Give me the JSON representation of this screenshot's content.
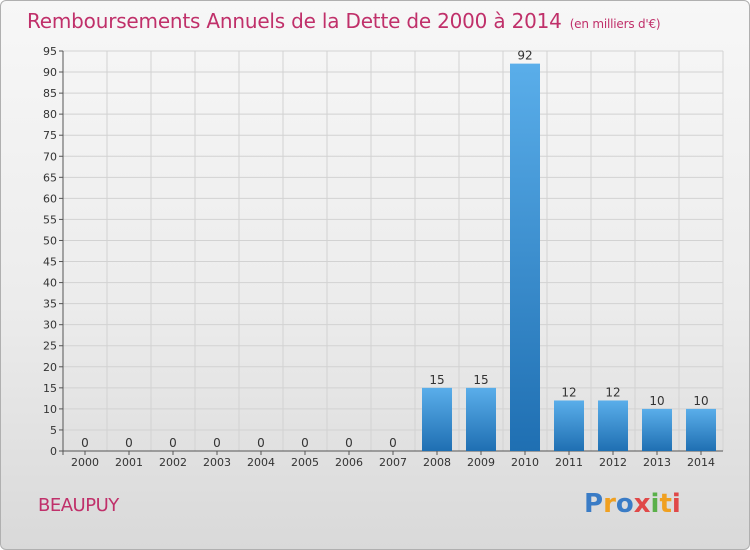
{
  "title": "Remboursements Annuels de la Dette de 2000 à 2014",
  "unit_note": "(en milliers d'€)",
  "commune": "BEAUPUY",
  "logo": {
    "text": "Proxiti",
    "letters": [
      "P",
      "r",
      "o",
      "x",
      "i",
      "t",
      "i"
    ],
    "colors": [
      "#3a7cc6",
      "#f0a020",
      "#e04848",
      "#5ab04a"
    ]
  },
  "colors": {
    "title": "#c0306a",
    "bar_light": "#5aaeea",
    "bar_dark": "#1f6fb2",
    "grid": "#d2d2d2",
    "axis_text": "#333333"
  },
  "chart_data": {
    "type": "bar",
    "title": "Remboursements Annuels de la Dette de 2000 à 2014",
    "xlabel": "",
    "ylabel": "",
    "categories": [
      "2000",
      "2001",
      "2002",
      "2003",
      "2004",
      "2005",
      "2006",
      "2007",
      "2008",
      "2009",
      "2010",
      "2011",
      "2012",
      "2013",
      "2014"
    ],
    "values": [
      0,
      0,
      0,
      0,
      0,
      0,
      0,
      0,
      15,
      15,
      92,
      12,
      12,
      10,
      10
    ],
    "data_labels": [
      "0",
      "0",
      "0",
      "0",
      "0",
      "0",
      "0",
      "0",
      "15",
      "15",
      "92",
      "12",
      "12",
      "10",
      "10"
    ],
    "ylim": [
      0,
      95
    ],
    "yticks": [
      0,
      5,
      10,
      15,
      20,
      25,
      30,
      35,
      40,
      45,
      50,
      55,
      60,
      65,
      70,
      75,
      80,
      85,
      90,
      95
    ],
    "grid": true,
    "legend": "none"
  }
}
